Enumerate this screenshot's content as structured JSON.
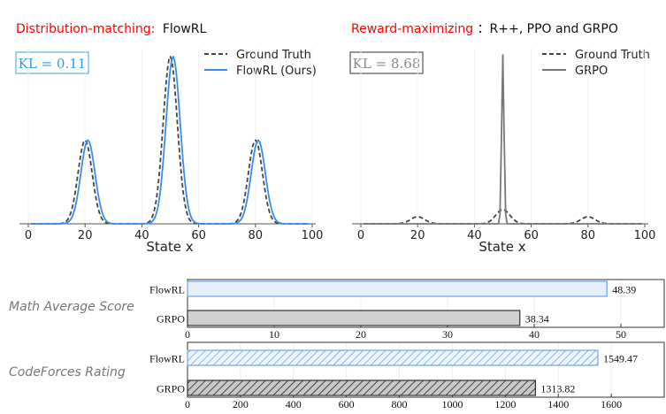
{
  "chart_data": [
    {
      "type": "line",
      "title_highlight": "Distribution-matching:",
      "title_rest": "FlowRL",
      "annotation": "KL = 0.11",
      "xlabel": "State x",
      "xlim": [
        0,
        100
      ],
      "xticks": [
        "0",
        "20",
        "40",
        "60",
        "80",
        "100"
      ],
      "ylim": [
        0,
        0.084
      ],
      "legend_placement": "top-right",
      "series": [
        {
          "name": "Ground Truth",
          "style": "dashed",
          "color": "#444444",
          "components": [
            {
              "mean": 20,
              "std": 2.5,
              "weight": 0.25
            },
            {
              "mean": 50,
              "std": 2.5,
              "weight": 0.5
            },
            {
              "mean": 80,
              "std": 2.5,
              "weight": 0.25
            }
          ]
        },
        {
          "name": "FlowRL (Ours)",
          "style": "solid",
          "color": "#3a8ee6",
          "components": [
            {
              "mean": 21,
              "std": 2.5,
              "weight": 0.25
            },
            {
              "mean": 51,
              "std": 2.5,
              "weight": 0.5
            },
            {
              "mean": 81,
              "std": 2.5,
              "weight": 0.25
            }
          ]
        }
      ]
    },
    {
      "type": "line",
      "title_highlight": "Reward-maximizing",
      "title_rest": "：R++, PPO and GRPO",
      "annotation": "KL = 8.68",
      "xlabel": "State x",
      "xlim": [
        0,
        100
      ],
      "xticks": [
        "0",
        "20",
        "40",
        "60",
        "80",
        "100"
      ],
      "ylim": [
        0,
        0.99
      ],
      "legend_placement": "top-right",
      "series": [
        {
          "name": "Ground Truth",
          "style": "dashed",
          "color": "#444444",
          "components": [
            {
              "mean": 20,
              "std": 2.5,
              "weight": 0.25
            },
            {
              "mean": 50,
              "std": 2.5,
              "weight": 0.5
            },
            {
              "mean": 80,
              "std": 2.5,
              "weight": 0.25
            }
          ]
        },
        {
          "name": "GRPO",
          "style": "solid",
          "color": "#777777",
          "components": [
            {
              "mean": 50,
              "std": 0.42,
              "weight": 1.0
            }
          ]
        }
      ]
    },
    {
      "type": "bar",
      "orientation": "horizontal",
      "ylabel": "Math Average Score",
      "categories": [
        "FlowRL",
        "GRPO"
      ],
      "values": [
        48.39,
        38.34
      ],
      "value_labels": [
        "48.39",
        "38.34"
      ],
      "xlim": [
        0,
        55
      ],
      "xticks": [
        "0",
        "10",
        "20",
        "30",
        "40",
        "50"
      ],
      "hatched": false
    },
    {
      "type": "bar",
      "orientation": "horizontal",
      "ylabel": "CodeForces Rating",
      "categories": [
        "FlowRL",
        "GRPO"
      ],
      "values": [
        1549.47,
        1313.82
      ],
      "value_labels": [
        "1549.47",
        "1313.82"
      ],
      "xlim": [
        0,
        1800
      ],
      "xticks": [
        "0",
        "200",
        "400",
        "600",
        "800",
        "1000",
        "1200",
        "1400",
        "1600"
      ],
      "hatched": true
    }
  ],
  "colors": {
    "highlight": "#ff0000",
    "flowrl": "#3a8ee6",
    "grpo": "#777777",
    "flowrl_bar_fill": "#e6effc",
    "grpo_bar_fill": "#d0d0d0"
  }
}
